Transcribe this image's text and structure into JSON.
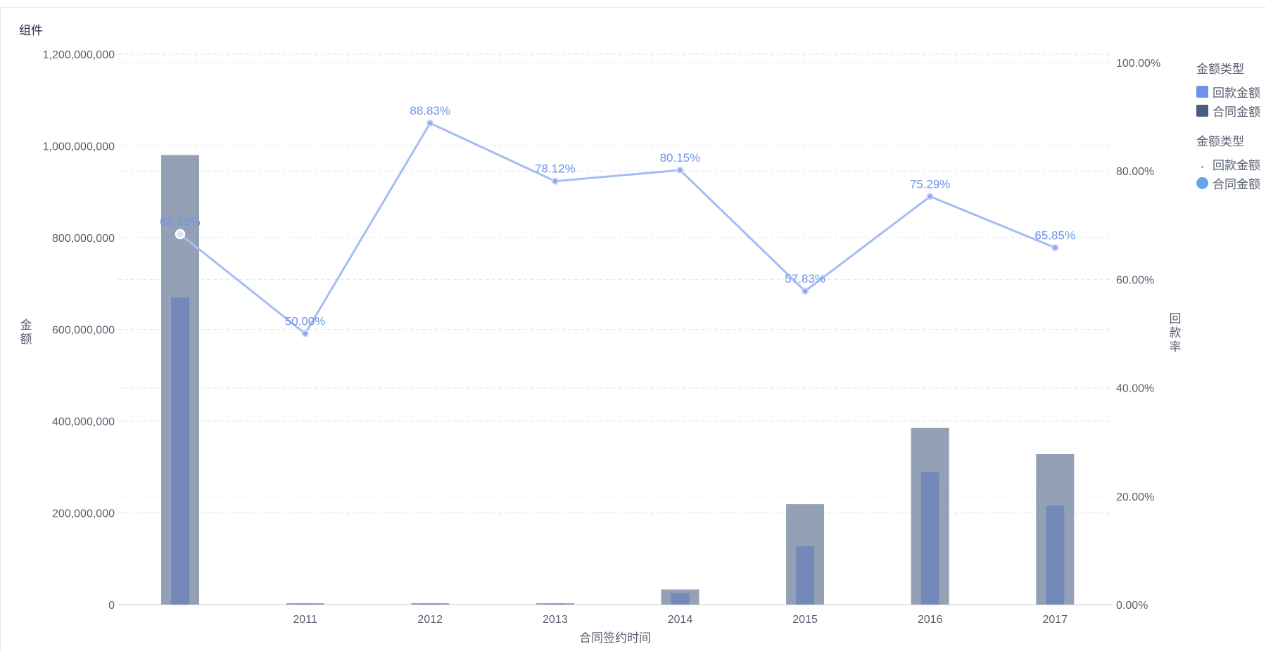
{
  "panel": {
    "title": "组件"
  },
  "legend_bar": {
    "title": "金额类型",
    "items": [
      {
        "label": "回款金额",
        "color": "#6f93e8"
      },
      {
        "label": "合同金额",
        "color": "#4a5d80"
      }
    ]
  },
  "legend_line": {
    "title": "金额类型",
    "items": [
      {
        "label": "回款金额",
        "color": "#62a8e8",
        "marker": "small-dot"
      },
      {
        "label": "合同金额",
        "color": "#62a8e8",
        "marker": "large-dot"
      }
    ]
  },
  "chart_data": {
    "type": "bar+line",
    "xlabel": "合同签约时间",
    "ylabel": "金额",
    "y2label": "回款率",
    "categories": [
      "",
      "2011",
      "2012",
      "2013",
      "2014",
      "2015",
      "2016",
      "2017"
    ],
    "ylim": [
      0,
      1200000000
    ],
    "y_ticks": [
      "0",
      "200,000,000",
      "400,000,000",
      "600,000,000",
      "800,000,000",
      "1,000,000,000",
      "1,200,000,000"
    ],
    "y2lim": [
      0,
      100
    ],
    "y2_ticks": [
      "0.00%",
      "20.00%",
      "40.00%",
      "60.00%",
      "80.00%",
      "100.00%"
    ],
    "series": [
      {
        "name": "合同金额",
        "type": "bar",
        "color": "#94a1b4",
        "values": [
          980000000,
          3000000,
          3000000,
          3000000,
          33000000,
          219000000,
          385000000,
          328000000
        ]
      },
      {
        "name": "回款金额",
        "type": "bar",
        "color": "#7389b9",
        "values": [
          670000000,
          1500000,
          1500000,
          1500000,
          25000000,
          127000000,
          289000000,
          216000000
        ]
      },
      {
        "name": "回款率",
        "type": "line",
        "color": "#a6bcf4",
        "values": [
          68.35,
          50.0,
          88.83,
          78.12,
          80.15,
          57.83,
          75.29,
          65.85
        ],
        "labels": [
          "68.35%",
          "50.00%",
          "88.83%",
          "78.12%",
          "80.15%",
          "57.83%",
          "75.29%",
          "65.85%"
        ]
      }
    ],
    "grid": true
  }
}
